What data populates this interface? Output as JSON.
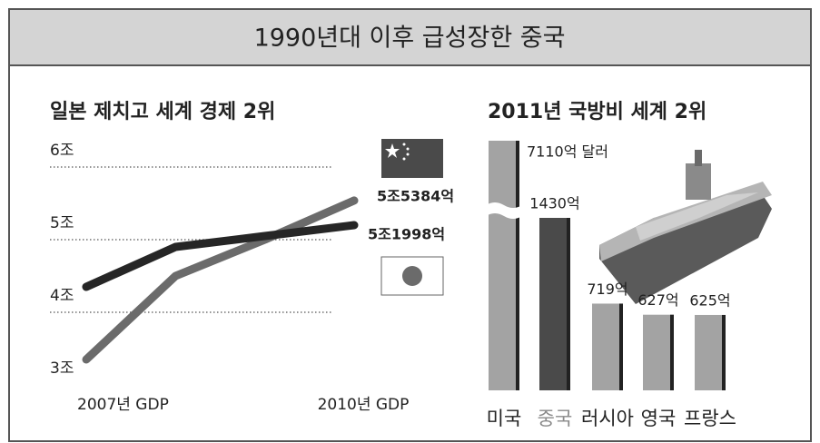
{
  "title": "1990년대 이후 급성장한 중국",
  "chart_data": [
    {
      "type": "line",
      "title": "일본 제치고 세계 경제 2위",
      "categories": [
        "2007년 GDP",
        null,
        null,
        "2010년 GDP"
      ],
      "ylim": [
        3,
        6
      ],
      "yticks": [
        {
          "value": 3,
          "label": "3조"
        },
        {
          "value": 4,
          "label": "4조"
        },
        {
          "value": 5,
          "label": "5조"
        },
        {
          "value": 6,
          "label": "6조"
        }
      ],
      "grid": true,
      "series": [
        {
          "color": "#6b6b6b",
          "values": [
            3.35,
            4.5,
            5.0,
            5.5384
          ],
          "value_labels": [
            null,
            null,
            null,
            "5조5384억"
          ]
        },
        {
          "color": "#262626",
          "values": [
            4.35,
            4.9,
            5.05,
            5.1998
          ],
          "value_labels": [
            null,
            null,
            null,
            "5조1998억"
          ]
        }
      ]
    },
    {
      "type": "bar",
      "title": "2011년 국방비 세계 2위",
      "categories": [
        "미국",
        "중국",
        "러시아",
        "영국",
        "프랑스"
      ],
      "values": [
        7110,
        1430,
        719,
        627,
        625
      ],
      "value_labels": [
        "7110억 달러",
        "1430억",
        "719억",
        "627억",
        "625억"
      ],
      "colors": [
        "#a3a3a3",
        "#4a4a4a",
        "#a3a3a3",
        "#a3a3a3",
        "#a3a3a3"
      ]
    }
  ]
}
